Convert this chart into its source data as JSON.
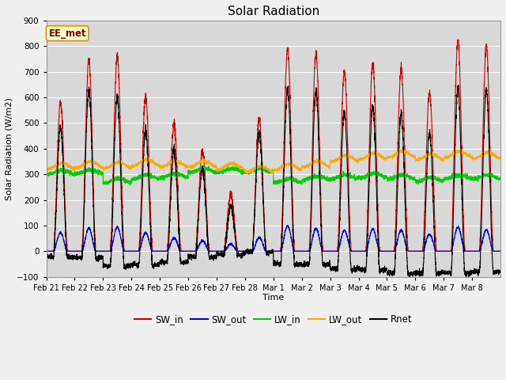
{
  "title": "Solar Radiation",
  "xlabel": "Time",
  "ylabel": "Solar Radiation (W/m2)",
  "ylim": [
    -100,
    900
  ],
  "yticks": [
    -100,
    0,
    100,
    200,
    300,
    400,
    500,
    600,
    700,
    800,
    900
  ],
  "date_labels": [
    "Feb 21",
    "Feb 22",
    "Feb 23",
    "Feb 24",
    "Feb 25",
    "Feb 26",
    "Feb 27",
    "Feb 28",
    "Mar 1",
    "Mar 2",
    "Mar 3",
    "Mar 4",
    "Mar 5",
    "Mar 6",
    "Mar 7",
    "Mar 8"
  ],
  "n_days": 16,
  "points_per_day": 288,
  "plot_bg": "#d8d8d8",
  "fig_bg": "#f0f0f0",
  "annotation_text": "EE_met",
  "annotation_bg": "#ffffcc",
  "annotation_border": "#cc9900",
  "annotation_text_color": "#880000",
  "grid_color": "#ffffff",
  "series": {
    "SW_in": {
      "color": "#cc0000",
      "lw": 0.8
    },
    "SW_out": {
      "color": "#0000ee",
      "lw": 0.8
    },
    "LW_in": {
      "color": "#00cc00",
      "lw": 0.8
    },
    "LW_out": {
      "color": "#ffaa00",
      "lw": 0.8
    },
    "Rnet": {
      "color": "#000000",
      "lw": 0.8
    }
  },
  "sw_in_peaks": [
    580,
    750,
    760,
    600,
    490,
    390,
    220,
    520,
    790,
    770,
    700,
    730,
    710,
    620,
    820,
    800
  ],
  "lw_in_base": [
    308,
    310,
    275,
    290,
    295,
    315,
    315,
    315,
    275,
    285,
    290,
    295,
    290,
    280,
    290,
    290
  ],
  "lw_out_base": [
    332,
    338,
    335,
    345,
    340,
    340,
    330,
    320,
    328,
    340,
    362,
    370,
    378,
    368,
    378,
    373
  ],
  "night_rnet": -50
}
